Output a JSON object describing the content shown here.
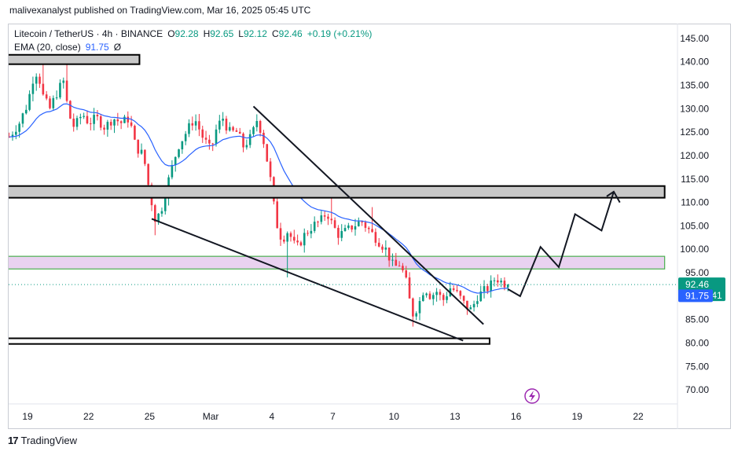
{
  "header": {
    "publisher_line": "malivexanalyst published on TradingView.com, Mar 16, 2025 05:45 UTC"
  },
  "legend": {
    "symbol": "Litecoin / TetherUS · 4h · BINANCE",
    "open_label": "O",
    "open": "92.28",
    "high_label": "H",
    "high": "92.65",
    "low_label": "L",
    "low": "92.12",
    "close_label": "C",
    "close": "92.46",
    "change": "+0.19 (+0.21%)",
    "ema_label": "EMA (20, close)",
    "ema_value": "91.75",
    "eye_glyph": "Ø"
  },
  "price_labels": {
    "last_price": "92.46",
    "countdown": "02:14:41",
    "ema_price": "91.75"
  },
  "footer": {
    "brand_glyph": "17",
    "brand_name": "TradingView"
  },
  "colors": {
    "up": "#089981",
    "down": "#f23645",
    "ema": "#2962ff",
    "zone_fill": "#e9d2f0",
    "zone_border": "#4caf50",
    "last_price_badge": "#089981",
    "ema_badge": "#2962ff",
    "lightning": "#9c27b0"
  },
  "chart_data": {
    "type": "candlestick",
    "interval": "4h",
    "y_axis": {
      "position": "right",
      "min": 67,
      "max": 148,
      "ticks": [
        "145.00",
        "140.00",
        "135.00",
        "130.00",
        "125.00",
        "120.00",
        "115.00",
        "110.00",
        "105.00",
        "100.00",
        "95.00",
        "90.00",
        "85.00",
        "80.00",
        "75.00",
        "70.00"
      ]
    },
    "x_axis": {
      "ticks": [
        {
          "label": "19",
          "day": 0
        },
        {
          "label": "22",
          "day": 3
        },
        {
          "label": "25",
          "day": 6
        },
        {
          "label": "Mar",
          "day": 9
        },
        {
          "label": "4",
          "day": 12
        },
        {
          "label": "7",
          "day": 15
        },
        {
          "label": "10",
          "day": 18
        },
        {
          "label": "13",
          "day": 21
        },
        {
          "label": "16",
          "day": 24
        },
        {
          "label": "19",
          "day": 27
        },
        {
          "label": "22",
          "day": 30
        }
      ]
    },
    "anchors": [
      [
        -0.9,
        124
      ],
      [
        -0.4,
        127
      ],
      [
        0.0,
        131
      ],
      [
        0.3,
        137
      ],
      [
        0.5,
        138
      ],
      [
        0.8,
        132
      ],
      [
        1.1,
        130
      ],
      [
        1.5,
        134
      ],
      [
        1.8,
        136
      ],
      [
        2.0,
        129
      ],
      [
        2.3,
        126
      ],
      [
        2.7,
        129
      ],
      [
        3.0,
        127
      ],
      [
        3.4,
        128
      ],
      [
        3.8,
        126
      ],
      [
        4.2,
        128
      ],
      [
        4.6,
        127
      ],
      [
        5.0,
        128
      ],
      [
        5.3,
        122
      ],
      [
        5.7,
        120
      ],
      [
        6.0,
        112
      ],
      [
        6.3,
        106
      ],
      [
        6.6,
        109
      ],
      [
        7.0,
        116
      ],
      [
        7.4,
        122
      ],
      [
        7.8,
        125
      ],
      [
        8.2,
        128
      ],
      [
        8.6,
        124
      ],
      [
        9.0,
        121
      ],
      [
        9.3,
        126
      ],
      [
        9.6,
        128
      ],
      [
        9.9,
        125
      ],
      [
        10.3,
        125
      ],
      [
        10.6,
        122
      ],
      [
        11.0,
        124
      ],
      [
        11.3,
        128
      ],
      [
        11.6,
        123
      ],
      [
        11.9,
        116
      ],
      [
        12.2,
        106
      ],
      [
        12.5,
        102
      ],
      [
        12.8,
        104
      ],
      [
        13.2,
        100
      ],
      [
        13.6,
        103
      ],
      [
        14.0,
        105
      ],
      [
        14.4,
        106
      ],
      [
        14.7,
        108
      ],
      [
        15.0,
        105
      ],
      [
        15.3,
        103
      ],
      [
        15.7,
        104
      ],
      [
        16.0,
        105
      ],
      [
        16.4,
        106
      ],
      [
        16.8,
        104
      ],
      [
        17.2,
        102
      ],
      [
        17.6,
        100
      ],
      [
        18.0,
        96
      ],
      [
        18.3,
        97
      ],
      [
        18.6,
        93
      ],
      [
        18.9,
        86
      ],
      [
        19.2,
        88
      ],
      [
        19.5,
        92
      ],
      [
        19.8,
        90
      ],
      [
        20.1,
        91
      ],
      [
        20.4,
        89
      ],
      [
        20.8,
        92
      ],
      [
        21.2,
        90
      ],
      [
        21.5,
        88
      ],
      [
        21.8,
        87
      ],
      [
        22.1,
        90
      ],
      [
        22.4,
        91
      ],
      [
        22.7,
        92
      ],
      [
        23.0,
        94
      ],
      [
        23.3,
        93
      ],
      [
        23.6,
        92.46
      ]
    ],
    "ema": {
      "name": "EMA (20, close)",
      "period": 20,
      "last_value": 91.75
    },
    "last_close": 92.46,
    "annotations": {
      "resistance_box_top": {
        "type": "rectangle",
        "day_start": -1.0,
        "day_end": 5.5,
        "y_top": 141.5,
        "y_bottom": 139.5,
        "style": "gray-fill-black-border"
      },
      "resistance_box_mid": {
        "type": "rectangle",
        "day_start": -1.0,
        "day_end": 31.3,
        "y_top": 113.5,
        "y_bottom": 111.0,
        "style": "gray-fill-black-border"
      },
      "support_box_bottom": {
        "type": "rectangle",
        "day_start": -1.0,
        "day_end": 22.7,
        "y_top": 81.0,
        "y_bottom": 79.8,
        "style": "white-fill-black-border"
      },
      "demand_zone": {
        "type": "rectangle",
        "day_start": -1.0,
        "day_end": 31.3,
        "y_top": 98.5,
        "y_bottom": 95.8,
        "style": "purple-fill-green-border"
      },
      "wedge_upper": {
        "type": "trendline",
        "points": [
          [
            11.1,
            130.5
          ],
          [
            22.4,
            84.0
          ]
        ]
      },
      "wedge_lower": {
        "type": "trendline",
        "points": [
          [
            6.1,
            106.5
          ],
          [
            21.4,
            80.5
          ]
        ]
      },
      "projection_path": {
        "type": "polyline",
        "points": [
          [
            23.6,
            91.5
          ],
          [
            24.2,
            90.0
          ],
          [
            25.2,
            100.5
          ],
          [
            26.1,
            96.2
          ],
          [
            26.9,
            107.5
          ],
          [
            28.2,
            104.0
          ],
          [
            28.8,
            112.3
          ],
          [
            29.1,
            110.0
          ]
        ]
      },
      "dotted_price_line": {
        "type": "hline",
        "y": 92.46
      }
    },
    "has_grid": false,
    "legend_position": "top-left"
  }
}
